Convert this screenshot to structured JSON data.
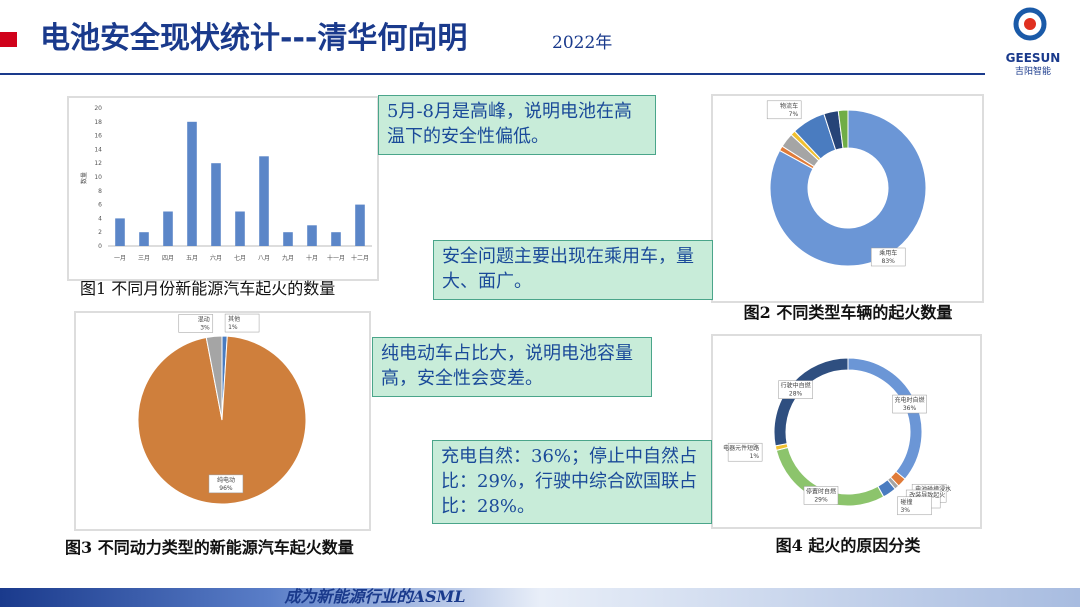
{
  "header": {
    "title": "电池安全现状统计---清华何向明",
    "year": "2022年",
    "logo": {
      "brand": "GEESUN",
      "sub": "吉阳智能"
    }
  },
  "chart_data": [
    {
      "type": "bar",
      "title": "图1 不同月份新能源汽车起火的数量",
      "y_label": "数量",
      "categories": [
        "一月",
        "三月",
        "四月",
        "五月",
        "六月",
        "七月",
        "八月",
        "九月",
        "十月",
        "十一月",
        "十二月"
      ],
      "values": [
        4,
        2,
        5,
        18,
        12,
        5,
        13,
        2,
        3,
        2,
        6
      ],
      "color": "#5b86c8",
      "ylim": [
        0,
        20
      ],
      "yticks": [
        0,
        2,
        4,
        6,
        8,
        10,
        12,
        14,
        16,
        18,
        20
      ]
    },
    {
      "type": "donut",
      "title": "图2 不同类型车辆的起火数量",
      "categories": [
        "乘用车",
        null,
        null,
        null,
        "物流车",
        null,
        null
      ],
      "values": [
        83,
        1,
        3,
        1,
        7,
        3,
        2
      ],
      "value_labels": [
        "83%",
        null,
        null,
        null,
        "7%",
        null,
        null
      ],
      "colors": [
        "#6b96d6",
        "#e07b39",
        "#a5a5a5",
        "#f0c030",
        "#4a7cc0",
        "#264478",
        "#70ad47"
      ]
    },
    {
      "type": "pie",
      "title": "图3 不同动力类型的新能源汽车起火数量",
      "categories": [
        "其他",
        "纯电动",
        "混动"
      ],
      "values": [
        1,
        96,
        3
      ],
      "value_labels": [
        "1%",
        "96%",
        "3%"
      ],
      "colors": [
        "#4a7cc0",
        "#cf7f3c",
        "#a5a5a5"
      ]
    },
    {
      "type": "donut",
      "title": "图4 起火的原因分类",
      "categories": [
        "充电时自燃",
        "电池碰撞浸水",
        "改装导致起火",
        "碰撞",
        "停置时自燃",
        "电器元件短路",
        "行驶中自燃"
      ],
      "values": [
        36,
        2,
        1,
        3,
        29,
        1,
        28
      ],
      "value_labels": [
        "36%",
        "2%",
        "1%",
        "3%",
        "29%",
        "1%",
        "28%"
      ],
      "colors": [
        "#6b96d6",
        "#e07b39",
        "#a5a5a5",
        "#4a7cc0",
        "#8cc46c",
        "#f0c030",
        "#2f4f80"
      ]
    }
  ],
  "notes": [
    "5月-8月是高峰，说明电池在高温下的安全性偏低。",
    "安全问题主要出现在乘用车，量大、面广。",
    "纯电动车占比大，说明电池容量高，安全性会变差。",
    "充电自然：36%；停止中自然占比：29%，行驶中综合欧国联占比：28%。"
  ],
  "footer": "成为新能源行业的ASML"
}
